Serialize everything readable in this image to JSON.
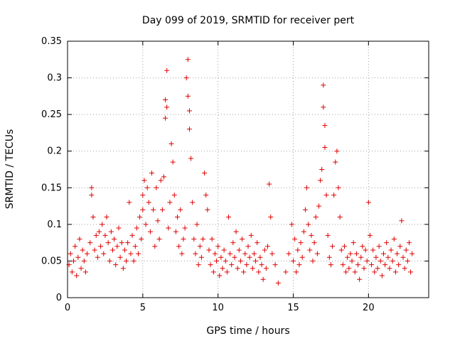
{
  "chart_data": {
    "type": "scatter",
    "title": "Day 099 of 2019, SRMTID for receiver pert",
    "xlabel": "GPS time / hours",
    "ylabel": "SRMTID / TECUs",
    "xlim": [
      0,
      24
    ],
    "ylim": [
      0,
      0.35
    ],
    "xticks": [
      0,
      5,
      10,
      15,
      20
    ],
    "yticks": [
      0,
      0.05,
      0.1,
      0.15,
      0.2,
      0.25,
      0.3,
      0.35
    ],
    "xtick_labels": [
      "0",
      "5",
      "10",
      "15",
      "20"
    ],
    "ytick_labels": [
      "0",
      "0.05",
      "0.1",
      "0.15",
      "0.2",
      "0.25",
      "0.3",
      "0.35"
    ],
    "grid": true,
    "marker": "+",
    "color": "#e00000",
    "series": [
      {
        "name": "pert",
        "points": [
          [
            0.1,
            0.045
          ],
          [
            0.2,
            0.06
          ],
          [
            0.3,
            0.035
          ],
          [
            0.4,
            0.05
          ],
          [
            0.5,
            0.07
          ],
          [
            0.6,
            0.03
          ],
          [
            0.7,
            0.055
          ],
          [
            0.8,
            0.08
          ],
          [
            0.9,
            0.04
          ],
          [
            1.0,
            0.065
          ],
          [
            1.1,
            0.05
          ],
          [
            1.2,
            0.035
          ],
          [
            1.3,
            0.06
          ],
          [
            1.5,
            0.075
          ],
          [
            1.6,
            0.15
          ],
          [
            1.6,
            0.14
          ],
          [
            1.7,
            0.11
          ],
          [
            1.8,
            0.065
          ],
          [
            1.9,
            0.085
          ],
          [
            2.0,
            0.055
          ],
          [
            2.1,
            0.09
          ],
          [
            2.2,
            0.07
          ],
          [
            2.3,
            0.1
          ],
          [
            2.4,
            0.06
          ],
          [
            2.5,
            0.085
          ],
          [
            2.6,
            0.11
          ],
          [
            2.7,
            0.075
          ],
          [
            2.8,
            0.05
          ],
          [
            2.9,
            0.09
          ],
          [
            3.0,
            0.065
          ],
          [
            3.1,
            0.08
          ],
          [
            3.2,
            0.045
          ],
          [
            3.3,
            0.07
          ],
          [
            3.4,
            0.095
          ],
          [
            3.5,
            0.055
          ],
          [
            3.6,
            0.075
          ],
          [
            3.7,
            0.04
          ],
          [
            3.8,
            0.065
          ],
          [
            3.9,
            0.05
          ],
          [
            4.0,
            0.075
          ],
          [
            4.1,
            0.13
          ],
          [
            4.2,
            0.06
          ],
          [
            4.3,
            0.085
          ],
          [
            4.4,
            0.05
          ],
          [
            4.5,
            0.07
          ],
          [
            4.6,
            0.095
          ],
          [
            4.7,
            0.06
          ],
          [
            4.8,
            0.11
          ],
          [
            4.9,
            0.08
          ],
          [
            5.0,
            0.14
          ],
          [
            5.0,
            0.12
          ],
          [
            5.1,
            0.16
          ],
          [
            5.2,
            0.1
          ],
          [
            5.3,
            0.15
          ],
          [
            5.4,
            0.13
          ],
          [
            5.5,
            0.09
          ],
          [
            5.6,
            0.17
          ],
          [
            5.7,
            0.12
          ],
          [
            5.8,
            0.07
          ],
          [
            5.9,
            0.15
          ],
          [
            6.0,
            0.105
          ],
          [
            6.1,
            0.08
          ],
          [
            6.2,
            0.16
          ],
          [
            6.3,
            0.12
          ],
          [
            6.4,
            0.165
          ],
          [
            6.5,
            0.27
          ],
          [
            6.5,
            0.245
          ],
          [
            6.6,
            0.31
          ],
          [
            6.6,
            0.26
          ],
          [
            6.7,
            0.095
          ],
          [
            6.8,
            0.13
          ],
          [
            6.9,
            0.21
          ],
          [
            7.0,
            0.185
          ],
          [
            7.1,
            0.14
          ],
          [
            7.2,
            0.09
          ],
          [
            7.3,
            0.11
          ],
          [
            7.4,
            0.07
          ],
          [
            7.5,
            0.12
          ],
          [
            7.6,
            0.06
          ],
          [
            7.7,
            0.08
          ],
          [
            7.8,
            0.095
          ],
          [
            7.9,
            0.3
          ],
          [
            8.0,
            0.325
          ],
          [
            8.0,
            0.275
          ],
          [
            8.1,
            0.255
          ],
          [
            8.1,
            0.23
          ],
          [
            8.2,
            0.19
          ],
          [
            8.3,
            0.13
          ],
          [
            8.4,
            0.08
          ],
          [
            8.5,
            0.06
          ],
          [
            8.6,
            0.1
          ],
          [
            8.7,
            0.045
          ],
          [
            8.8,
            0.07
          ],
          [
            8.9,
            0.055
          ],
          [
            9.0,
            0.08
          ],
          [
            9.1,
            0.17
          ],
          [
            9.2,
            0.14
          ],
          [
            9.3,
            0.12
          ],
          [
            9.4,
            0.065
          ],
          [
            9.5,
            0.045
          ],
          [
            9.6,
            0.08
          ],
          [
            9.7,
            0.035
          ],
          [
            9.8,
            0.06
          ],
          [
            9.9,
            0.05
          ],
          [
            10.0,
            0.07
          ],
          [
            10.1,
            0.03
          ],
          [
            10.2,
            0.055
          ],
          [
            10.3,
            0.04
          ],
          [
            10.4,
            0.065
          ],
          [
            10.5,
            0.05
          ],
          [
            10.6,
            0.035
          ],
          [
            10.7,
            0.11
          ],
          [
            10.8,
            0.06
          ],
          [
            10.9,
            0.045
          ],
          [
            11.0,
            0.075
          ],
          [
            11.1,
            0.055
          ],
          [
            11.2,
            0.09
          ],
          [
            11.3,
            0.04
          ],
          [
            11.4,
            0.065
          ],
          [
            11.5,
            0.05
          ],
          [
            11.6,
            0.08
          ],
          [
            11.7,
            0.035
          ],
          [
            11.8,
            0.06
          ],
          [
            11.9,
            0.045
          ],
          [
            12.0,
            0.07
          ],
          [
            12.1,
            0.055
          ],
          [
            12.2,
            0.085
          ],
          [
            12.3,
            0.04
          ],
          [
            12.4,
            0.06
          ],
          [
            12.5,
            0.05
          ],
          [
            12.6,
            0.075
          ],
          [
            12.7,
            0.035
          ],
          [
            12.8,
            0.055
          ],
          [
            12.9,
            0.045
          ],
          [
            13.0,
            0.025
          ],
          [
            13.1,
            0.065
          ],
          [
            13.2,
            0.04
          ],
          [
            13.3,
            0.07
          ],
          [
            13.4,
            0.155
          ],
          [
            13.5,
            0.11
          ],
          [
            13.6,
            0.06
          ],
          [
            13.8,
            0.045
          ],
          [
            14.0,
            0.02
          ],
          [
            14.5,
            0.035
          ],
          [
            14.7,
            0.06
          ],
          [
            14.9,
            0.1
          ],
          [
            15.0,
            0.05
          ],
          [
            15.1,
            0.08
          ],
          [
            15.2,
            0.035
          ],
          [
            15.3,
            0.065
          ],
          [
            15.4,
            0.045
          ],
          [
            15.5,
            0.075
          ],
          [
            15.6,
            0.055
          ],
          [
            15.7,
            0.09
          ],
          [
            15.8,
            0.12
          ],
          [
            15.9,
            0.15
          ],
          [
            16.0,
            0.1
          ],
          [
            16.1,
            0.065
          ],
          [
            16.2,
            0.085
          ],
          [
            16.3,
            0.05
          ],
          [
            16.4,
            0.075
          ],
          [
            16.5,
            0.11
          ],
          [
            16.6,
            0.06
          ],
          [
            16.7,
            0.125
          ],
          [
            16.8,
            0.16
          ],
          [
            16.9,
            0.175
          ],
          [
            17.0,
            0.26
          ],
          [
            17.0,
            0.29
          ],
          [
            17.1,
            0.235
          ],
          [
            17.1,
            0.205
          ],
          [
            17.2,
            0.14
          ],
          [
            17.3,
            0.085
          ],
          [
            17.4,
            0.055
          ],
          [
            17.5,
            0.045
          ],
          [
            17.6,
            0.07
          ],
          [
            17.7,
            0.14
          ],
          [
            17.8,
            0.185
          ],
          [
            17.9,
            0.2
          ],
          [
            18.0,
            0.15
          ],
          [
            18.1,
            0.11
          ],
          [
            18.2,
            0.065
          ],
          [
            18.3,
            0.045
          ],
          [
            18.4,
            0.07
          ],
          [
            18.5,
            0.035
          ],
          [
            18.6,
            0.055
          ],
          [
            18.7,
            0.04
          ],
          [
            18.8,
            0.06
          ],
          [
            18.9,
            0.05
          ],
          [
            19.0,
            0.075
          ],
          [
            19.1,
            0.035
          ],
          [
            19.2,
            0.06
          ],
          [
            19.3,
            0.045
          ],
          [
            19.4,
            0.025
          ],
          [
            19.5,
            0.055
          ],
          [
            19.6,
            0.07
          ],
          [
            19.7,
            0.04
          ],
          [
            19.8,
            0.065
          ],
          [
            19.9,
            0.05
          ],
          [
            20.0,
            0.13
          ],
          [
            20.1,
            0.085
          ],
          [
            20.2,
            0.045
          ],
          [
            20.3,
            0.065
          ],
          [
            20.4,
            0.035
          ],
          [
            20.5,
            0.055
          ],
          [
            20.6,
            0.04
          ],
          [
            20.7,
            0.07
          ],
          [
            20.8,
            0.05
          ],
          [
            20.9,
            0.03
          ],
          [
            21.0,
            0.06
          ],
          [
            21.1,
            0.045
          ],
          [
            21.2,
            0.075
          ],
          [
            21.3,
            0.055
          ],
          [
            21.4,
            0.04
          ],
          [
            21.5,
            0.065
          ],
          [
            21.6,
            0.05
          ],
          [
            21.7,
            0.08
          ],
          [
            21.8,
            0.035
          ],
          [
            21.9,
            0.06
          ],
          [
            22.0,
            0.045
          ],
          [
            22.1,
            0.07
          ],
          [
            22.2,
            0.105
          ],
          [
            22.3,
            0.055
          ],
          [
            22.4,
            0.04
          ],
          [
            22.5,
            0.065
          ],
          [
            22.6,
            0.05
          ],
          [
            22.7,
            0.075
          ],
          [
            22.8,
            0.035
          ],
          [
            22.9,
            0.06
          ]
        ]
      }
    ]
  }
}
